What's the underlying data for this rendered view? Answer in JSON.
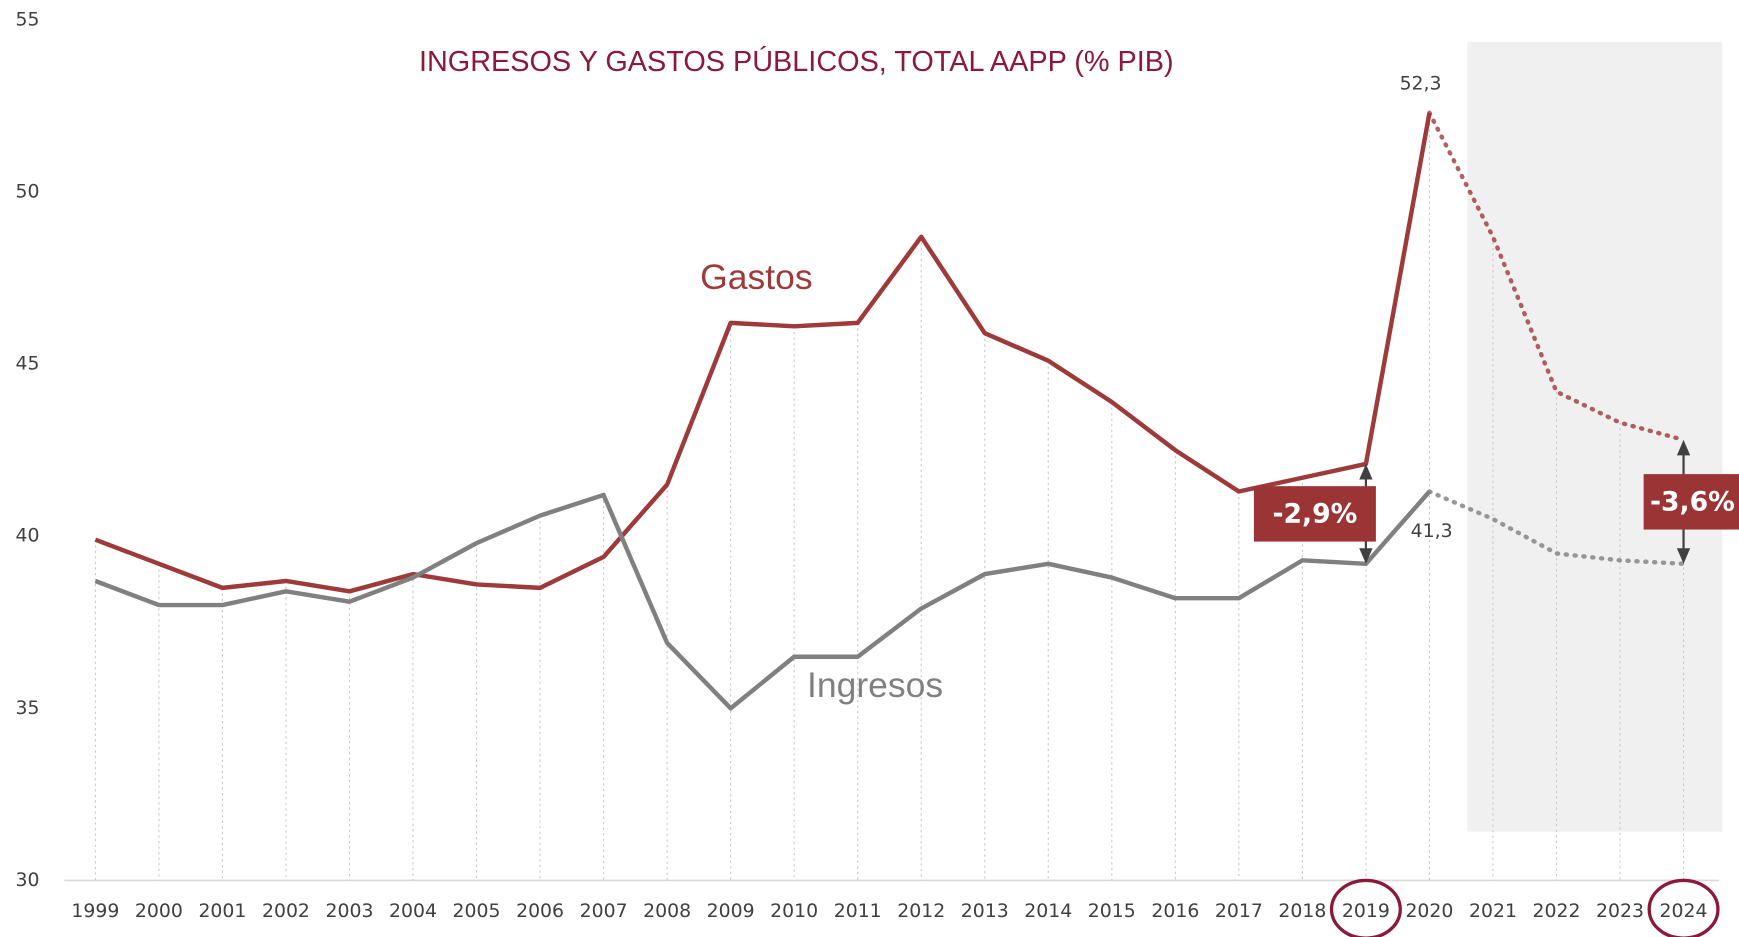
{
  "chart_data": {
    "type": "line",
    "title": "INGRESOS  Y GASTOS PÚBLICOS, TOTAL AAPP (% PIB)",
    "categories": [
      "1999",
      "2000",
      "2001",
      "2002",
      "2003",
      "2004",
      "2005",
      "2006",
      "2007",
      "2008",
      "2009",
      "2010",
      "2011",
      "2012",
      "2013",
      "2014",
      "2015",
      "2016",
      "2017",
      "2018",
      "2019",
      "2020",
      "2021",
      "2022",
      "2023",
      "2024"
    ],
    "series": [
      {
        "name": "Gastos",
        "color": "#9e3a3a",
        "values": [
          39.9,
          39.2,
          38.5,
          38.7,
          38.4,
          38.9,
          38.6,
          38.5,
          39.4,
          41.5,
          46.2,
          46.1,
          46.2,
          48.7,
          45.9,
          45.1,
          43.9,
          42.5,
          41.3,
          41.7,
          42.1,
          52.3,
          48.7,
          44.2,
          43.3,
          42.8
        ],
        "point_labels": [
          {
            "index": 21,
            "label": "52,3"
          }
        ]
      },
      {
        "name": "Ingresos",
        "color": "#808080",
        "values": [
          38.7,
          38.0,
          38.0,
          38.4,
          38.1,
          38.8,
          39.8,
          40.6,
          41.2,
          36.9,
          35.0,
          36.5,
          36.5,
          37.9,
          38.9,
          39.2,
          38.8,
          38.2,
          38.2,
          39.3,
          39.2,
          41.3,
          40.5,
          39.5,
          39.3,
          39.2
        ],
        "point_labels": [
          {
            "index": 21,
            "label": "41,3"
          }
        ]
      }
    ],
    "forecast_from_index": 21,
    "gap_annotations": [
      {
        "index": 20,
        "value": -2.9,
        "label": "-2,9%"
      },
      {
        "index": 25,
        "value": -3.6,
        "label": "-3,6%"
      }
    ],
    "highlight_indices": [
      20,
      25
    ],
    "ylim": [
      30,
      55
    ],
    "yticks": [
      30,
      35,
      40,
      45,
      50,
      55
    ]
  }
}
